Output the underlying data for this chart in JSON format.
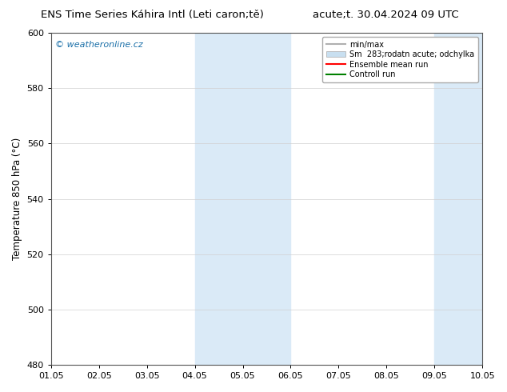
{
  "title_left": "ENS Time Series Káhira Intl (Leti caron;tě)",
  "title_right": "acute;t. 30.04.2024 09 UTC",
  "ylabel": "Temperature 850 hPa (°C)",
  "ylim": [
    480,
    600
  ],
  "yticks": [
    480,
    500,
    520,
    540,
    560,
    580,
    600
  ],
  "xlim": [
    0,
    9
  ],
  "xtick_positions": [
    0,
    1,
    2,
    3,
    4,
    5,
    6,
    7,
    8,
    9
  ],
  "xtick_labels": [
    "01.05",
    "02.05",
    "03.05",
    "04.05",
    "05.05",
    "06.05",
    "07.05",
    "08.05",
    "09.05",
    "10.05"
  ],
  "shade_bands": [
    {
      "x_start": 3.0,
      "x_end": 5.0,
      "color": "#daeaf7"
    },
    {
      "x_start": 8.0,
      "x_end": 9.0,
      "color": "#daeaf7"
    }
  ],
  "watermark_text": "© weatheronline.cz",
  "watermark_color": "#1a6fa8",
  "legend_entries": [
    {
      "label": "min/max",
      "color": "#b0b0b0",
      "type": "line"
    },
    {
      "label": "Sm  283;rodatn acute; odchylka",
      "color": "#c8dff0",
      "type": "fill"
    },
    {
      "label": "Ensemble mean run",
      "color": "red",
      "type": "line"
    },
    {
      "label": "Controll run",
      "color": "green",
      "type": "line"
    }
  ],
  "bg_color": "#ffffff",
  "grid_color": "#d0d0d0",
  "title_fontsize": 9.5,
  "axis_label_fontsize": 8.5,
  "tick_fontsize": 8,
  "legend_fontsize": 7,
  "watermark_fontsize": 8
}
